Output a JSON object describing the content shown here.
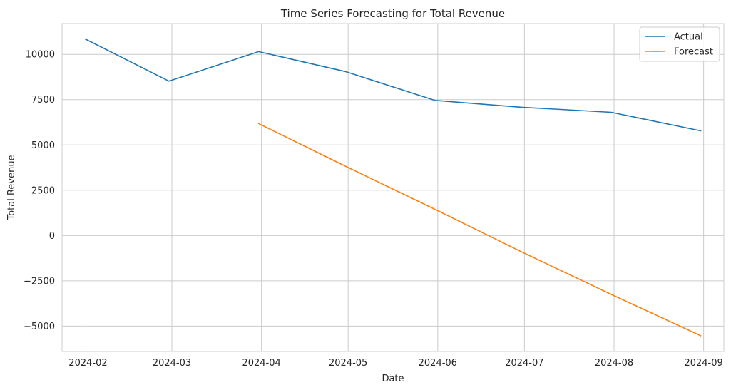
{
  "chart_data": {
    "type": "line",
    "title": "Time Series Forecasting for Total Revenue",
    "xlabel": "Date",
    "ylabel": "Total Revenue",
    "x_ticks": [
      "2024-02",
      "2024-03",
      "2024-04",
      "2024-05",
      "2024-06",
      "2024-07",
      "2024-08",
      "2024-09"
    ],
    "y_ticks": [
      "−5000",
      "−2500",
      "0",
      "2500",
      "5000",
      "7500",
      "10000"
    ],
    "y_tick_values": [
      -5000,
      -2500,
      0,
      2500,
      5000,
      7500,
      10000
    ],
    "ylim": [
      -6400,
      11700
    ],
    "xlim": [
      "2024-01-23",
      "2024-09-08"
    ],
    "grid": true,
    "legend_position": "top-right",
    "series": [
      {
        "name": "Actual",
        "color": "#1f77b4",
        "x": [
          "2024-01-31",
          "2024-02-29",
          "2024-03-31",
          "2024-04-30",
          "2024-05-31",
          "2024-06-30",
          "2024-07-31",
          "2024-08-31"
        ],
        "values": [
          10850,
          8520,
          10150,
          9050,
          7460,
          7080,
          6800,
          5780
        ]
      },
      {
        "name": "Forecast",
        "color": "#ff7f0e",
        "x": [
          "2024-03-31",
          "2024-04-30",
          "2024-05-31",
          "2024-06-30",
          "2024-07-31",
          "2024-08-31"
        ],
        "values": [
          6180,
          3830,
          1450,
          -900,
          -3250,
          -5530
        ]
      }
    ]
  }
}
